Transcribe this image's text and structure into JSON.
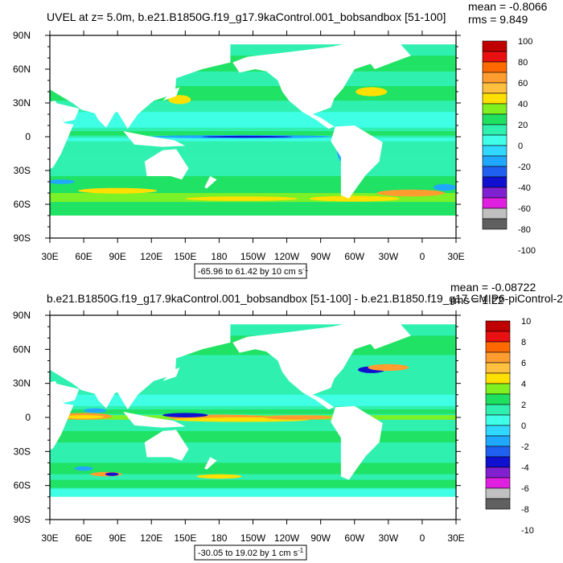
{
  "chart_data": [
    {
      "type": "heatmap",
      "title": "UVEL at z=   5.0m, b.e21.B1850G.f19_g17.9kaControl.001_bobsandbox [51-100]",
      "stats": {
        "mean": "mean = -0.8066",
        "rms": "rms = 9.849"
      },
      "range_note": "-65.96 to 61.42 by 10 cm s",
      "range_unit_sup": "-1",
      "x_ticks": [
        "30E",
        "60E",
        "90E",
        "120E",
        "150E",
        "180",
        "150W",
        "120W",
        "90W",
        "60W",
        "30W",
        "0",
        "30E"
      ],
      "y_ticks": [
        "90N",
        "60N",
        "30N",
        "0",
        "30S",
        "60S",
        "90S"
      ],
      "colorbar_levels": [
        "100",
        "80",
        "60",
        "40",
        "20",
        "0",
        "-20",
        "-40",
        "-60",
        "-80",
        "-100"
      ],
      "colorbar_colors": [
        "#c00000",
        "#e81010",
        "#ff6a00",
        "#ff9c30",
        "#ffc040",
        "#ffe000",
        "#80f020",
        "#20e060",
        "#30f0b0",
        "#40ffe8",
        "#30d8ff",
        "#20a8ff",
        "#2060f0",
        "#1010d0",
        "#8020d0",
        "#e020e0",
        "#c0c0c0",
        "#606060"
      ],
      "xlim": [
        30,
        390
      ],
      "ylim": [
        -90,
        90
      ]
    },
    {
      "type": "heatmap",
      "title": "b.e21.B1850G.f19_g17.9kaControl.001_bobsandbox [51-100] - b.e21.B1850.f19_g17.CMIP6-piControl-2",
      "stats": {
        "mean": "mean = -0.08722",
        "rms": "rms = 1.22"
      },
      "range_note": "-30.05 to 19.02 by 1 cm s",
      "range_unit_sup": "-1",
      "x_ticks": [
        "30E",
        "60E",
        "90E",
        "120E",
        "150E",
        "180",
        "150W",
        "120W",
        "90W",
        "60W",
        "30W",
        "0",
        "30E"
      ],
      "y_ticks": [
        "90N",
        "60N",
        "30N",
        "0",
        "30S",
        "60S",
        "90S"
      ],
      "colorbar_levels": [
        "10",
        "8",
        "6",
        "4",
        "2",
        "0",
        "-2",
        "-4",
        "-6",
        "-8",
        "-10"
      ],
      "colorbar_colors": [
        "#c00000",
        "#e81010",
        "#ff6a00",
        "#ff9c30",
        "#ffc040",
        "#ffe000",
        "#80f020",
        "#20e060",
        "#30f0b0",
        "#40ffe8",
        "#30d8ff",
        "#20a8ff",
        "#2060f0",
        "#1010d0",
        "#8020d0",
        "#e020e0",
        "#c0c0c0",
        "#606060"
      ],
      "xlim": [
        30,
        390
      ],
      "ylim": [
        -90,
        90
      ]
    }
  ],
  "palette": {
    "ocean_base": "#30f0b0",
    "ocean_weak": "#40ffe8",
    "band_green": "#20e060",
    "band_light": "#80f020",
    "hot": "#ffe000",
    "warm": "#ff9c30",
    "cold": "#20a8ff",
    "deep": "#1010d0"
  }
}
